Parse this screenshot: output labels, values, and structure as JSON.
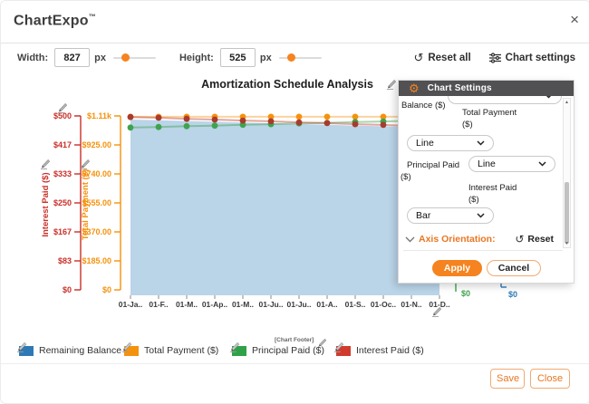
{
  "header": {
    "brand": "ChartExpo",
    "trademark": "™",
    "close": "×"
  },
  "toolbar": {
    "width_label": "Width:",
    "width_value": "827",
    "width_unit": "px",
    "height_label": "Height:",
    "height_value": "525",
    "height_unit": "px",
    "reset_all_label": "Reset all",
    "chart_settings_label": "Chart settings"
  },
  "icons": {
    "reset": "↺",
    "gear": "⚙",
    "close": "×",
    "scroll_up": "▲",
    "scroll_down": "▼"
  },
  "settings_panel": {
    "title": "Chart Settings",
    "balance_label": "Balance ($)",
    "total_payment_label_line1": "Total Payment",
    "total_payment_label_line2": "($)",
    "principal_label_line1": "Principal Paid",
    "principal_label_line2": "($)",
    "interest_label_line1": "Interest Paid",
    "interest_label_line2": "($)",
    "type_dropdowns": [
      "Line",
      "Line",
      "Bar"
    ],
    "axis_orientation_label": "Axis Orientation:",
    "reset_label": "Reset",
    "apply_label": "Apply",
    "cancel_label": "Cancel"
  },
  "legend": {
    "items": [
      {
        "label": "Remaining Balance ($)",
        "color": "#2E79B5"
      },
      {
        "label": "Total Payment ($)",
        "color": "#F5920D"
      },
      {
        "label": "Principal Paid ($)",
        "color": "#2FA148"
      },
      {
        "label": "Interest Paid ($)",
        "color": "#D13B2E"
      }
    ],
    "footer_note": "[Chart Footer]"
  },
  "footer": {
    "save_label": "Save",
    "close_label": "Close"
  },
  "chart_data": {
    "type": "combo",
    "title": "Amortization Schedule Analysis",
    "footer": "[Chart Footer]",
    "x_categories": [
      "01-Ja..",
      "01-F..",
      "01-M..",
      "01-Ap..",
      "01-M..",
      "01-Ju..",
      "01-Ju..",
      "01-A..",
      "01-S..",
      "01-Oc..",
      "01-N..",
      "01-D.."
    ],
    "axes": {
      "interest": {
        "label": "Interest Paid ($)",
        "color": "#CB2F27",
        "range": [
          0,
          500
        ],
        "ticks": [
          "$500",
          "$417",
          "$333",
          "$250",
          "$167",
          "$83",
          "$0"
        ],
        "side": "left"
      },
      "total": {
        "label": "Total Payment ($)",
        "color": "#F5920D",
        "range": [
          0,
          1110
        ],
        "ticks": [
          "$1.11k",
          "$925.00",
          "$740.00",
          "$555.00",
          "$370.00",
          "$185.00",
          "$0"
        ],
        "side": "left"
      },
      "principal": {
        "label": "Principal Paid ($)",
        "color": "#3FA34D",
        "range": [
          0,
          650
        ],
        "ticks": [
          "$0"
        ],
        "side": "right"
      },
      "balance": {
        "label": "Remaining Balance ($)",
        "color": "#2E79B5",
        "range": [
          0,
          101000
        ],
        "ticks": [
          "$0"
        ],
        "side": "right"
      }
    },
    "series": [
      {
        "name": "Remaining Balance ($)",
        "render": "area",
        "axis": "balance",
        "color": "#2E79B5",
        "fill": "#BAD4E8",
        "values": [
          98960,
          98540,
          98130,
          97710,
          97290,
          96870,
          96440,
          96020,
          95590,
          95160,
          94730,
          94290
        ]
      },
      {
        "name": "Total Payment ($)",
        "render": "line",
        "axis": "total",
        "color": "#F5920D",
        "line_color": "rgba(245,146,13,0.40)",
        "values": [
          1105,
          1105,
          1105,
          1105,
          1105,
          1105,
          1105,
          1105,
          1105,
          1105,
          1105,
          1105
        ]
      },
      {
        "name": "Principal Paid ($)",
        "render": "line",
        "axis": "principal",
        "color": "#3FA34D",
        "line_color": "rgba(63,163,77,0.45)",
        "values": [
          608,
          610,
          613,
          615,
          618,
          620,
          623,
          625,
          628,
          630,
          633,
          635
        ]
      },
      {
        "name": "Interest Paid ($)",
        "render": "line",
        "axis": "interest",
        "color": "#A93A2E",
        "line_color": "rgba(192,57,43,0.45)",
        "values": [
          497,
          495,
          492,
          490,
          487,
          485,
          482,
          480,
          477,
          475,
          472,
          470
        ]
      }
    ]
  }
}
